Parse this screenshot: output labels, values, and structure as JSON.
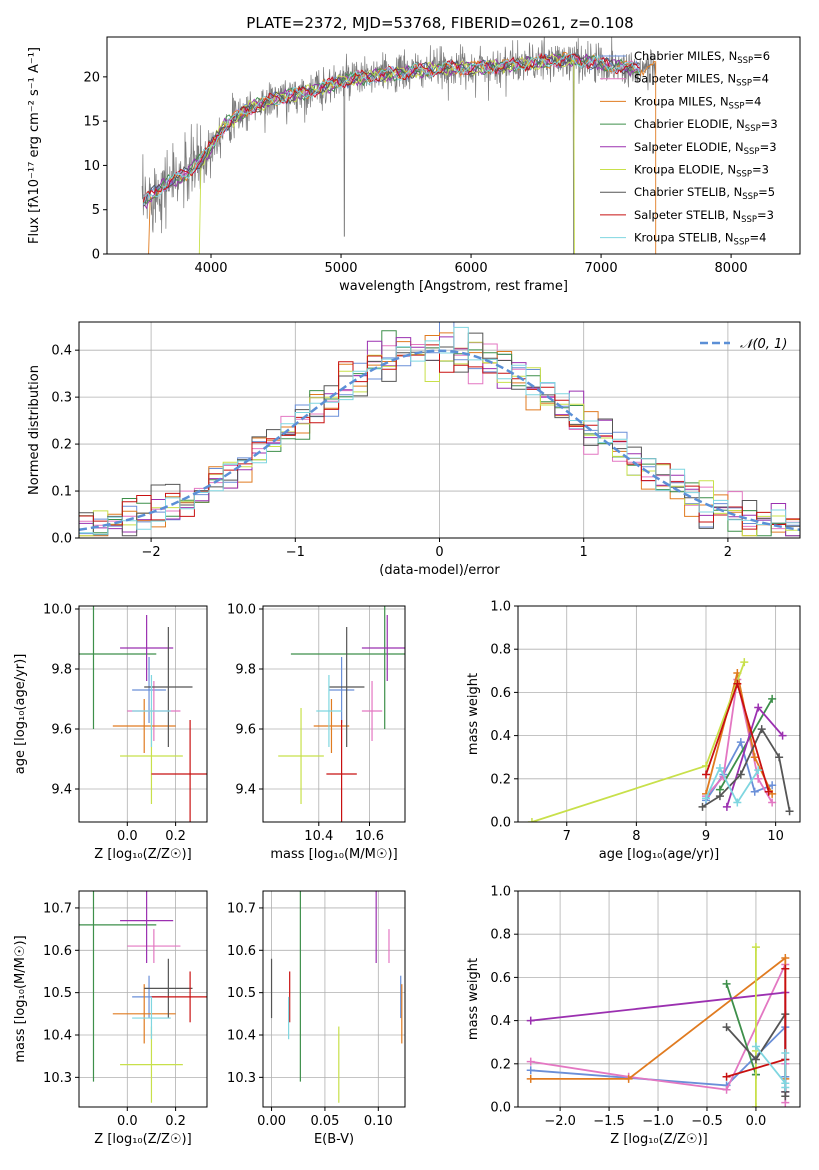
{
  "figure": {
    "title": "PLATE=2372, MJD=53768, FIBERID=0261, z=0.108"
  },
  "models": [
    {
      "name": "Chabrier MILES",
      "nssp": "6",
      "color": "#6a8fd8"
    },
    {
      "name": "Salpeter MILES",
      "nssp": "4",
      "color": "#e377c2"
    },
    {
      "name": "Kroupa MILES",
      "nssp": "4",
      "color": "#e07b20"
    },
    {
      "name": "Chabrier ELODIE",
      "nssp": "3",
      "color": "#3d8f4a"
    },
    {
      "name": "Salpeter ELODIE",
      "nssp": "3",
      "color": "#9b30b0"
    },
    {
      "name": "Kroupa ELODIE",
      "nssp": "3",
      "color": "#c8e04a"
    },
    {
      "name": "Chabrier STELIB",
      "nssp": "5",
      "color": "#555555"
    },
    {
      "name": "Salpeter STELIB",
      "nssp": "3",
      "color": "#c81010"
    },
    {
      "name": "Kroupa STELIB",
      "nssp": "4",
      "color": "#7fd6e0"
    }
  ],
  "chart_data": [
    {
      "id": "spectrum",
      "type": "line",
      "xlabel": "wavelength [Angstrom, rest frame]",
      "ylabel": "Flux [fλ10⁻¹⁷ erg cm⁻² s⁻¹ A⁻¹]",
      "xlim": [
        3200,
        8530
      ],
      "ylim": [
        0,
        24.5
      ],
      "xticks": [
        4000,
        5000,
        6000,
        7000,
        8000
      ],
      "yticks": [
        0,
        5,
        10,
        15,
        20
      ],
      "grid": false,
      "legend": "right",
      "x_range_data": [
        3470,
        7420
      ],
      "continuum": {
        "x": [
          3470,
          3600,
          3800,
          3950,
          4100,
          4300,
          4500,
          4800,
          5000,
          5200,
          5500,
          5800,
          6000,
          6300,
          6600,
          6800,
          7000,
          7200,
          7420
        ],
        "y": [
          5.5,
          7.5,
          9.0,
          11.0,
          14.5,
          16.5,
          17.5,
          18.5,
          19.5,
          20.0,
          20.5,
          21.0,
          21.0,
          21.3,
          21.8,
          22.0,
          21.5,
          21.0,
          21.0
        ]
      }
    },
    {
      "id": "residuals",
      "type": "line",
      "xlabel": "(data-model)/error",
      "ylabel": "Normed distribution",
      "xlim": [
        -2.5,
        2.5
      ],
      "ylim": [
        0,
        0.46
      ],
      "xticks": [
        -2,
        -1,
        0,
        1,
        2
      ],
      "yticks": [
        0.0,
        0.1,
        0.2,
        0.3,
        0.4
      ],
      "grid": true,
      "legend": "top-right",
      "reference": {
        "name": "𝒩(0, 1)",
        "mean": 0,
        "sigma": 1,
        "color": "#5b8fd6"
      },
      "bin_width": 0.1
    },
    {
      "id": "age_vs_Z",
      "type": "scatter",
      "xlabel": "Z [log₁₀(Z/Z☉)]",
      "ylabel": "age  [log₁₀(age/yr)]",
      "xlim": [
        -0.2,
        0.33
      ],
      "ylim": [
        9.29,
        10.01
      ],
      "xticks": [
        0.0,
        0.2
      ],
      "yticks": [
        9.4,
        9.6,
        9.8,
        10.0
      ],
      "grid": true,
      "points": [
        {
          "model": "Chabrier MILES",
          "x": 0.09,
          "xerr": 0.07,
          "y": 9.73,
          "yerr": 0.11
        },
        {
          "model": "Salpeter MILES",
          "x": 0.11,
          "xerr": 0.11,
          "y": 9.66,
          "yerr": 0.1
        },
        {
          "model": "Kroupa MILES",
          "x": 0.07,
          "xerr": 0.13,
          "y": 9.61,
          "yerr": 0.09
        },
        {
          "model": "Chabrier ELODIE",
          "x": -0.14,
          "xerr": 0.26,
          "y": 9.85,
          "yerr": 0.25
        },
        {
          "model": "Salpeter ELODIE",
          "x": 0.08,
          "xerr": 0.11,
          "y": 9.87,
          "yerr": 0.11
        },
        {
          "model": "Kroupa ELODIE",
          "x": 0.1,
          "xerr": 0.13,
          "y": 9.51,
          "yerr": 0.16
        },
        {
          "model": "Chabrier STELIB",
          "x": 0.17,
          "xerr": 0.1,
          "y": 9.74,
          "yerr": 0.2
        },
        {
          "model": "Salpeter STELIB",
          "x": 0.26,
          "xerr": 0.16,
          "y": 9.45,
          "yerr": 0.18
        },
        {
          "model": "Kroupa STELIB",
          "x": 0.1,
          "xerr": 0.08,
          "y": 9.66,
          "yerr": 0.12
        }
      ]
    },
    {
      "id": "age_vs_mass",
      "type": "scatter",
      "xlabel": "mass [log₁₀(M/M☉)]",
      "ylabel": "",
      "xlim": [
        10.18,
        10.74
      ],
      "ylim": [
        9.29,
        10.01
      ],
      "xticks": [
        10.4,
        10.6
      ],
      "yticks": [
        9.4,
        9.6,
        9.8,
        10.0
      ],
      "grid": true,
      "points": [
        {
          "model": "Chabrier MILES",
          "x": 10.49,
          "xerr": 0.05,
          "y": 9.73,
          "yerr": 0.11
        },
        {
          "model": "Salpeter MILES",
          "x": 10.61,
          "xerr": 0.04,
          "y": 9.66,
          "yerr": 0.1
        },
        {
          "model": "Kroupa MILES",
          "x": 10.45,
          "xerr": 0.07,
          "y": 9.61,
          "yerr": 0.09
        },
        {
          "model": "Chabrier ELODIE",
          "x": 10.66,
          "xerr": 0.37,
          "y": 9.85,
          "yerr": 0.25
        },
        {
          "model": "Salpeter ELODIE",
          "x": 10.67,
          "xerr": 0.1,
          "y": 9.87,
          "yerr": 0.11
        },
        {
          "model": "Kroupa ELODIE",
          "x": 10.33,
          "xerr": 0.09,
          "y": 9.51,
          "yerr": 0.16
        },
        {
          "model": "Chabrier STELIB",
          "x": 10.51,
          "xerr": 0.07,
          "y": 9.74,
          "yerr": 0.2
        },
        {
          "model": "Salpeter STELIB",
          "x": 10.49,
          "xerr": 0.06,
          "y": 9.45,
          "yerr": 0.18
        },
        {
          "model": "Kroupa STELIB",
          "x": 10.44,
          "xerr": 0.05,
          "y": 9.66,
          "yerr": 0.12
        }
      ]
    },
    {
      "id": "weight_vs_age",
      "type": "line",
      "xlabel": "age  [log₁₀(age/yr)]",
      "ylabel": "mass weight",
      "xlim": [
        6.3,
        10.35
      ],
      "ylim": [
        0,
        1.0
      ],
      "xticks": [
        7,
        8,
        9,
        10
      ],
      "yticks": [
        0.0,
        0.2,
        0.4,
        0.6,
        0.8,
        1.0
      ],
      "grid": true,
      "series": [
        {
          "model": "Chabrier MILES",
          "x": [
            9.0,
            9.25,
            9.5,
            9.7,
            9.95
          ],
          "y": [
            0.1,
            0.22,
            0.37,
            0.14,
            0.17
          ]
        },
        {
          "model": "Salpeter MILES",
          "x": [
            9.0,
            9.25,
            9.45,
            9.75,
            9.95
          ],
          "y": [
            0.12,
            0.21,
            0.66,
            0.2,
            0.09
          ]
        },
        {
          "model": "Kroupa MILES",
          "x": [
            9.0,
            9.45,
            9.7,
            9.95
          ],
          "y": [
            0.13,
            0.69,
            0.3,
            0.13
          ]
        },
        {
          "model": "Chabrier ELODIE",
          "x": [
            9.2,
            9.95
          ],
          "y": [
            0.15,
            0.57
          ]
        },
        {
          "model": "Salpeter ELODIE",
          "x": [
            9.3,
            9.75,
            10.1
          ],
          "y": [
            0.07,
            0.53,
            0.4
          ]
        },
        {
          "model": "Kroupa ELODIE",
          "x": [
            6.5,
            9.0,
            9.55
          ],
          "y": [
            0.0,
            0.26,
            0.74
          ]
        },
        {
          "model": "Chabrier STELIB",
          "x": [
            8.95,
            9.2,
            9.5,
            9.8,
            10.05,
            10.2
          ],
          "y": [
            0.07,
            0.12,
            0.22,
            0.43,
            0.3,
            0.05
          ]
        },
        {
          "model": "Salpeter STELIB",
          "x": [
            9.0,
            9.45,
            9.9
          ],
          "y": [
            0.22,
            0.64,
            0.14
          ]
        },
        {
          "model": "Kroupa STELIB",
          "x": [
            9.0,
            9.2,
            9.45,
            9.75
          ],
          "y": [
            0.11,
            0.25,
            0.09,
            0.24
          ]
        }
      ]
    },
    {
      "id": "mass_vs_Z",
      "type": "scatter",
      "xlabel": "Z [log₁₀(Z/Z☉)]",
      "ylabel": "mass [log₁₀(M/M☉)]",
      "xlim": [
        -0.2,
        0.33
      ],
      "ylim": [
        10.23,
        10.74
      ],
      "xticks": [
        0.0,
        0.2
      ],
      "yticks": [
        10.3,
        10.4,
        10.5,
        10.6,
        10.7
      ],
      "grid": true,
      "points": [
        {
          "model": "Chabrier MILES",
          "x": 0.09,
          "xerr": 0.07,
          "y": 10.49,
          "yerr": 0.05
        },
        {
          "model": "Salpeter MILES",
          "x": 0.11,
          "xerr": 0.11,
          "y": 10.61,
          "yerr": 0.04
        },
        {
          "model": "Kroupa MILES",
          "x": 0.07,
          "xerr": 0.13,
          "y": 10.45,
          "yerr": 0.07
        },
        {
          "model": "Chabrier ELODIE",
          "x": -0.14,
          "xerr": 0.26,
          "y": 10.66,
          "yerr": 0.37
        },
        {
          "model": "Salpeter ELODIE",
          "x": 0.08,
          "xerr": 0.11,
          "y": 10.67,
          "yerr": 0.1
        },
        {
          "model": "Kroupa ELODIE",
          "x": 0.1,
          "xerr": 0.13,
          "y": 10.33,
          "yerr": 0.09
        },
        {
          "model": "Chabrier STELIB",
          "x": 0.17,
          "xerr": 0.1,
          "y": 10.51,
          "yerr": 0.07
        },
        {
          "model": "Salpeter STELIB",
          "x": 0.26,
          "xerr": 0.16,
          "y": 10.49,
          "yerr": 0.06
        },
        {
          "model": "Kroupa STELIB",
          "x": 0.1,
          "xerr": 0.08,
          "y": 10.44,
          "yerr": 0.05
        }
      ]
    },
    {
      "id": "mass_vs_ebv",
      "type": "scatter",
      "xlabel": "E(B-V)",
      "ylabel": "",
      "xlim": [
        -0.008,
        0.125
      ],
      "ylim": [
        10.23,
        10.74
      ],
      "xticks": [
        0.0,
        0.05,
        0.1
      ],
      "xticklabels": [
        "0.00",
        "0.05",
        "0.10"
      ],
      "yticks": [
        10.3,
        10.4,
        10.5,
        10.6,
        10.7
      ],
      "grid": true,
      "points": [
        {
          "model": "Chabrier MILES",
          "x": 0.121,
          "y": 10.49,
          "yerr": 0.05
        },
        {
          "model": "Salpeter MILES",
          "x": 0.11,
          "y": 10.61,
          "yerr": 0.04
        },
        {
          "model": "Kroupa MILES",
          "x": 0.122,
          "y": 10.45,
          "yerr": 0.07
        },
        {
          "model": "Chabrier ELODIE",
          "x": 0.027,
          "y": 10.66,
          "yerr": 0.37
        },
        {
          "model": "Salpeter ELODIE",
          "x": 0.098,
          "y": 10.67,
          "yerr": 0.1
        },
        {
          "model": "Kroupa ELODIE",
          "x": 0.063,
          "y": 10.33,
          "yerr": 0.09
        },
        {
          "model": "Chabrier STELIB",
          "x": 0.0,
          "y": 10.51,
          "yerr": 0.07
        },
        {
          "model": "Salpeter STELIB",
          "x": 0.017,
          "y": 10.49,
          "yerr": 0.06
        },
        {
          "model": "Kroupa STELIB",
          "x": 0.016,
          "y": 10.44,
          "yerr": 0.05
        }
      ]
    },
    {
      "id": "weight_vs_Z",
      "type": "line",
      "xlabel": "Z [log₁₀(Z/Z☉)]",
      "ylabel": "mass weight",
      "xlim": [
        -2.43,
        0.45
      ],
      "ylim": [
        0,
        1.0
      ],
      "xticks": [
        -2.0,
        -1.5,
        -1.0,
        -0.5,
        0.0
      ],
      "yticks": [
        0.0,
        0.2,
        0.4,
        0.6,
        0.8,
        1.0
      ],
      "grid": true,
      "series": [
        {
          "model": "Chabrier MILES",
          "x": [
            -2.3,
            -0.3,
            0.3,
            0.3,
            0.3
          ],
          "y": [
            0.17,
            0.1,
            0.37,
            0.22,
            0.14
          ]
        },
        {
          "model": "Salpeter MILES",
          "x": [
            -2.3,
            -1.3,
            -0.3,
            0.3,
            0.3,
            0.3
          ],
          "y": [
            0.21,
            0.14,
            0.08,
            0.66,
            0.2,
            0.02
          ]
        },
        {
          "model": "Kroupa MILES",
          "x": [
            -2.3,
            -1.3,
            0.3,
            0.3
          ],
          "y": [
            0.13,
            0.13,
            0.69,
            0.13
          ]
        },
        {
          "model": "Chabrier ELODIE",
          "x": [
            -0.3,
            0.0,
            0.0
          ],
          "y": [
            0.57,
            0.15,
            0.15
          ]
        },
        {
          "model": "Salpeter ELODIE",
          "x": [
            -2.3,
            0.3,
            0.3
          ],
          "y": [
            0.4,
            0.53,
            0.07
          ]
        },
        {
          "model": "Kroupa ELODIE",
          "x": [
            0.0,
            0.0,
            0.0
          ],
          "y": [
            0.0,
            0.74,
            0.26
          ]
        },
        {
          "model": "Chabrier STELIB",
          "x": [
            -0.3,
            0.0,
            0.3,
            0.3,
            0.3
          ],
          "y": [
            0.37,
            0.22,
            0.43,
            0.07,
            0.05
          ]
        },
        {
          "model": "Salpeter STELIB",
          "x": [
            -0.3,
            0.3,
            0.3
          ],
          "y": [
            0.14,
            0.22,
            0.64
          ]
        },
        {
          "model": "Kroupa STELIB",
          "x": [
            0.0,
            0.3,
            0.3,
            0.3
          ],
          "y": [
            0.28,
            0.11,
            0.25,
            0.09
          ]
        }
      ]
    }
  ]
}
